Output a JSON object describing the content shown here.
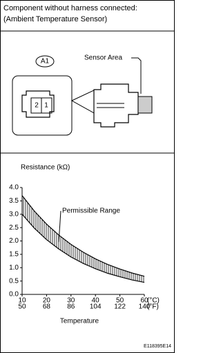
{
  "header": {
    "lines": [
      "Component without harness connected:",
      "(Ambient Temperature Sensor)"
    ]
  },
  "diagram": {
    "connector_label": "A1",
    "pins": [
      "2",
      "1"
    ],
    "sensor_label": "Sensor Area"
  },
  "chart_data": {
    "type": "band",
    "title": "Resistance (kΩ)",
    "xlabel": "Temperature",
    "annotation": "Permissible Range",
    "x": [
      10,
      15,
      20,
      25,
      30,
      35,
      40,
      45,
      50,
      55,
      60
    ],
    "high": [
      3.7,
      3.12,
      2.63,
      2.22,
      1.87,
      1.58,
      1.33,
      1.12,
      0.95,
      0.8,
      0.68
    ],
    "low": [
      3.0,
      2.48,
      2.05,
      1.7,
      1.4,
      1.16,
      0.96,
      0.79,
      0.66,
      0.54,
      0.45
    ],
    "color": "#000000",
    "xlim": [
      10,
      60
    ],
    "ylim": [
      0,
      4
    ],
    "xticks": [
      10,
      20,
      30,
      40,
      50,
      60
    ],
    "xunit": "(°C)",
    "secondary_xticks": [
      50,
      68,
      86,
      104,
      122,
      140
    ],
    "secondary_xunit": "(°F)",
    "yticks": [
      {
        "value": 4,
        "label": "4.0"
      },
      3.5,
      {
        "value": 3,
        "label": "3.0"
      },
      2.5,
      {
        "value": 2,
        "label": "2.0"
      },
      1.5,
      {
        "value": 1,
        "label": "1.0"
      },
      0.5,
      {
        "value": 0,
        "label": "0.0"
      }
    ]
  },
  "footer": {
    "code": "E118395E14"
  }
}
